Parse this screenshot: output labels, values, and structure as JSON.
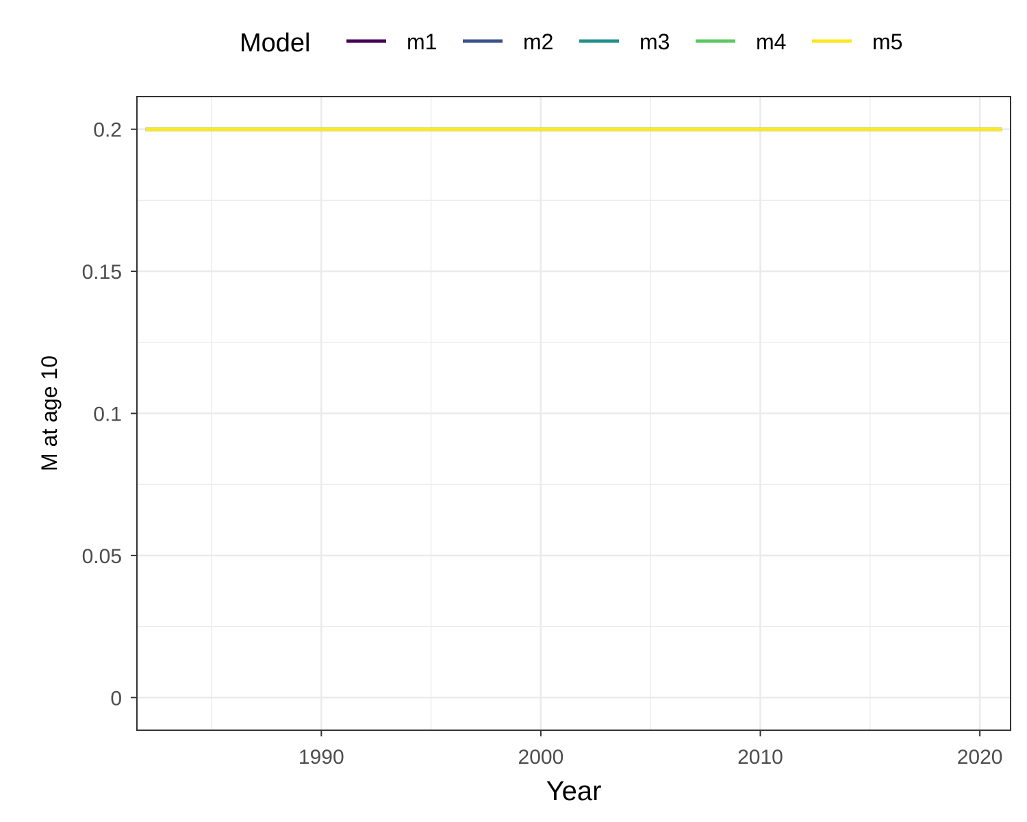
{
  "chart_data": {
    "type": "line",
    "title": "",
    "xlabel": "Year",
    "ylabel": "M at age 10",
    "xlim": [
      1981.6,
      2021.4
    ],
    "ylim": [
      -0.0115,
      0.2115
    ],
    "x_ticks": [
      1990,
      2000,
      2010,
      2020
    ],
    "x_tick_labels": [
      "1990",
      "2000",
      "2010",
      "2020"
    ],
    "y_ticks": [
      0,
      0.05,
      0.1,
      0.15,
      0.2
    ],
    "y_tick_labels": [
      "0",
      "0.05",
      "0.1",
      "0.15",
      "0.2"
    ],
    "grid": true,
    "legend": {
      "title": "Model",
      "position": "top"
    },
    "x": [
      1982,
      1983,
      1984,
      1985,
      1986,
      1987,
      1988,
      1989,
      1990,
      1991,
      1992,
      1993,
      1994,
      1995,
      1996,
      1997,
      1998,
      1999,
      2000,
      2001,
      2002,
      2003,
      2004,
      2005,
      2006,
      2007,
      2008,
      2009,
      2010,
      2011,
      2012,
      2013,
      2014,
      2015,
      2016,
      2017,
      2018,
      2019,
      2020,
      2021
    ],
    "series": [
      {
        "name": "m1",
        "color": "#440154",
        "values": [
          0.2,
          0.2,
          0.2,
          0.2,
          0.2,
          0.2,
          0.2,
          0.2,
          0.2,
          0.2,
          0.2,
          0.2,
          0.2,
          0.2,
          0.2,
          0.2,
          0.2,
          0.2,
          0.2,
          0.2,
          0.2,
          0.2,
          0.2,
          0.2,
          0.2,
          0.2,
          0.2,
          0.2,
          0.2,
          0.2,
          0.2,
          0.2,
          0.2,
          0.2,
          0.2,
          0.2,
          0.2,
          0.2,
          0.2,
          0.2
        ]
      },
      {
        "name": "m2",
        "color": "#3B528B",
        "values": [
          0.2,
          0.2,
          0.2,
          0.2,
          0.2,
          0.2,
          0.2,
          0.2,
          0.2,
          0.2,
          0.2,
          0.2,
          0.2,
          0.2,
          0.2,
          0.2,
          0.2,
          0.2,
          0.2,
          0.2,
          0.2,
          0.2,
          0.2,
          0.2,
          0.2,
          0.2,
          0.2,
          0.2,
          0.2,
          0.2,
          0.2,
          0.2,
          0.2,
          0.2,
          0.2,
          0.2,
          0.2,
          0.2,
          0.2,
          0.2
        ]
      },
      {
        "name": "m3",
        "color": "#21908C",
        "values": [
          0.2,
          0.2,
          0.2,
          0.2,
          0.2,
          0.2,
          0.2,
          0.2,
          0.2,
          0.2,
          0.2,
          0.2,
          0.2,
          0.2,
          0.2,
          0.2,
          0.2,
          0.2,
          0.2,
          0.2,
          0.2,
          0.2,
          0.2,
          0.2,
          0.2,
          0.2,
          0.2,
          0.2,
          0.2,
          0.2,
          0.2,
          0.2,
          0.2,
          0.2,
          0.2,
          0.2,
          0.2,
          0.2,
          0.2,
          0.2
        ]
      },
      {
        "name": "m4",
        "color": "#5DC863",
        "values": [
          0.2,
          0.2,
          0.2,
          0.2,
          0.2,
          0.2,
          0.2,
          0.2,
          0.2,
          0.2,
          0.2,
          0.2,
          0.2,
          0.2,
          0.2,
          0.2,
          0.2,
          0.2,
          0.2,
          0.2,
          0.2,
          0.2,
          0.2,
          0.2,
          0.2,
          0.2,
          0.2,
          0.2,
          0.2,
          0.2,
          0.2,
          0.2,
          0.2,
          0.2,
          0.2,
          0.2,
          0.2,
          0.2,
          0.2,
          0.2
        ]
      },
      {
        "name": "m5",
        "color": "#FDE725",
        "values": [
          0.2,
          0.2,
          0.2,
          0.2,
          0.2,
          0.2,
          0.2,
          0.2,
          0.2,
          0.2,
          0.2,
          0.2,
          0.2,
          0.2,
          0.2,
          0.2,
          0.2,
          0.2,
          0.2,
          0.2,
          0.2,
          0.2,
          0.2,
          0.2,
          0.2,
          0.2,
          0.2,
          0.2,
          0.2,
          0.2,
          0.2,
          0.2,
          0.2,
          0.2,
          0.2,
          0.2,
          0.2,
          0.2,
          0.2,
          0.2
        ]
      }
    ]
  }
}
